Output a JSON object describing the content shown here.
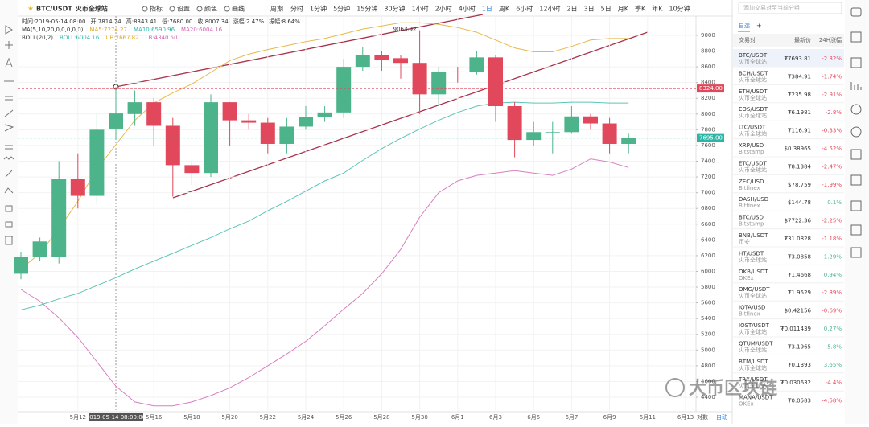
{
  "toolbar": {
    "symbol": "BTC/USDT",
    "exchange": "火币全球站",
    "buttons": [
      "指标",
      "设置",
      "颜色",
      "画线"
    ],
    "period_label": "周期",
    "periods": [
      "分时",
      "1分钟",
      "5分钟",
      "15分钟",
      "30分钟",
      "1小时",
      "2小时",
      "4小时",
      "1日",
      "周K",
      "6小时",
      "12小时",
      "2日",
      "3日",
      "5日",
      "月K",
      "季K",
      "年K",
      "10分钟"
    ],
    "active_period_index": 8
  },
  "info": {
    "ohlc": [
      "时间:2019-05-14 08:00",
      "开:7814.24",
      "高:8343.41",
      "低:7680.00",
      "收:8007.34",
      "涨幅:2.47%",
      "振幅:8.64%"
    ],
    "ma": [
      {
        "text": "MA(5,10,20,0,0,0,0,0)",
        "color": "#333333"
      },
      {
        "text": "MA5:7274.27",
        "color": "#e0a81e"
      },
      {
        "text": "MA10:6590.96",
        "color": "#2bb5a5"
      },
      {
        "text": "MA20:6004.16",
        "color": "#d65fb0"
      }
    ],
    "boll": [
      {
        "text": "BOLL(20,2)",
        "color": "#333333"
      },
      {
        "text": "BOLL:6004.16",
        "color": "#2bb5a5"
      },
      {
        "text": "UB:7667.82",
        "color": "#e0a81e"
      },
      {
        "text": "LB:4340.50",
        "color": "#d65fb0"
      }
    ]
  },
  "chart": {
    "type": "candlestick",
    "categories": [
      null,
      null,
      null,
      "5月12",
      null,
      null,
      null,
      "5月16",
      null,
      "5月18",
      null,
      "5月20",
      null,
      "5月22",
      null,
      "5月24",
      null,
      "5月26",
      null,
      "5月28",
      null,
      "5月30",
      null,
      "6月1",
      null,
      "6月3",
      null,
      "6月5",
      null,
      "6月7",
      null,
      "6月9",
      null,
      "6月11",
      null,
      "6月13"
    ],
    "open": [
      5970,
      6180,
      6180,
      7180,
      6960,
      7814.24,
      8000,
      8150,
      7850,
      7350,
      7250,
      8150,
      7920,
      7890,
      7620,
      7840,
      7960,
      8020,
      8600,
      8750,
      8710,
      8650,
      8250,
      8540,
      8530,
      8720,
      8100,
      7670,
      7760,
      7770,
      7970,
      7880,
      7620,
      null,
      null,
      null
    ],
    "high": [
      6250,
      6430,
      7400,
      7500,
      8000,
      8343.41,
      8300,
      8200,
      7950,
      7400,
      8250,
      8150,
      8000,
      7950,
      7950,
      8100,
      8100,
      8700,
      8850,
      8800,
      8750,
      9063.92,
      8600,
      8600,
      8800,
      8750,
      8150,
      7900,
      7900,
      8100,
      8000,
      7950,
      7750,
      null,
      null,
      null
    ],
    "low": [
      5900,
      6130,
      6100,
      6800,
      6850,
      7680,
      7850,
      7600,
      6950,
      7100,
      7200,
      7600,
      7800,
      7500,
      7500,
      7800,
      7900,
      7950,
      8550,
      8550,
      8450,
      8000,
      8100,
      8400,
      8500,
      7900,
      7450,
      7600,
      7500,
      7750,
      7800,
      7500,
      7500,
      null,
      null,
      null
    ],
    "close": [
      6180,
      6380,
      7180,
      6960,
      7800,
      8007.34,
      8150,
      7850,
      7350,
      7250,
      8150,
      7920,
      7890,
      7620,
      7840,
      7960,
      8020,
      8600,
      8750,
      8690,
      8650,
      8250,
      8540,
      8530,
      8720,
      8100,
      7670,
      7770,
      7770,
      7970,
      7880,
      7620,
      7693.81,
      null,
      null,
      null
    ],
    "up_color": "#4cb38a",
    "down_color": "#e1485b",
    "series": [
      {
        "color": "#e8b84a",
        "values": [
          6030,
          6230,
          6540,
          6890,
          7300,
          7610,
          7920,
          8140,
          8270,
          8380,
          8530,
          8680,
          8760,
          8820,
          8870,
          8920,
          8960,
          9020,
          9080,
          9120,
          9160,
          9160,
          9140,
          9100,
          9040,
          8940,
          8840,
          8790,
          8790,
          8860,
          8940,
          8960,
          8960,
          null,
          null,
          null
        ]
      },
      {
        "color": "#5cc4b8",
        "values": [
          5510,
          5570,
          5650,
          5720,
          5820,
          5920,
          6030,
          6130,
          6230,
          6330,
          6430,
          6540,
          6640,
          6770,
          6890,
          7020,
          7150,
          7250,
          7410,
          7560,
          7690,
          7810,
          7920,
          8020,
          8100,
          8140,
          8150,
          8140,
          8140,
          8150,
          8150,
          8140,
          8140,
          null,
          null,
          null
        ]
      },
      {
        "color": "#d77fc0",
        "values": [
          5770,
          5620,
          5410,
          5160,
          4850,
          4540,
          4340,
          4290,
          4290,
          4340,
          4420,
          4520,
          4650,
          4800,
          4950,
          5110,
          5310,
          5520,
          5720,
          5970,
          6280,
          6690,
          7000,
          7150,
          7220,
          7250,
          7280,
          7250,
          7220,
          7300,
          7430,
          7390,
          7320,
          null,
          null,
          null
        ]
      }
    ],
    "ylim": [
      4216,
      9245
    ],
    "yticks": [
      9000,
      8800,
      8600,
      8400,
      8200,
      8000,
      7800,
      7600,
      7400,
      7200,
      7000,
      6800,
      6600,
      6400,
      6200,
      6000,
      5800,
      5600,
      5400,
      5200,
      5000,
      4800,
      4600,
      4400
    ],
    "price_lines": [
      {
        "value": 8324,
        "label": "8324.00",
        "color": "#e1485b"
      },
      {
        "value": 7695,
        "label": "7695.00",
        "color": "#2bb5a5"
      }
    ],
    "crosshair_label": "2019-05-14 08:00:00",
    "high_annotation_index": 21,
    "bottom_buttons": [
      "对数",
      "自动"
    ]
  },
  "watchlist": {
    "search": "添加交易对至当前分组",
    "tab": "自选",
    "add": "+",
    "columns": [
      "交易对",
      "最新价",
      "24H涨幅"
    ],
    "rows": [
      [
        "BTC/USDT",
        "火币全球站",
        "₮7693.81",
        "-2.32%"
      ],
      [
        "BCH/USDT",
        "火币全球站",
        "₮384.91",
        "-1.74%"
      ],
      [
        "ETH/USDT",
        "火币全球站",
        "₮235.98",
        "-2.91%"
      ],
      [
        "EOS/USDT",
        "火币全球站",
        "₮6.1981",
        "-2.8%"
      ],
      [
        "LTC/USDT",
        "火币全球站",
        "₮116.91",
        "-0.33%"
      ],
      [
        "XRP/USD",
        "Bitstamp",
        "$0.38965",
        "-4.52%"
      ],
      [
        "ETC/USDT",
        "火币全球站",
        "₮8.1384",
        "-2.47%"
      ],
      [
        "ZEC/USD",
        "Bitfinex",
        "$78.759",
        "-1.99%"
      ],
      [
        "DASH/USD",
        "Bitfinex",
        "$144.78",
        "0.1%"
      ],
      [
        "BTC/USD",
        "Bitstamp",
        "$7722.36",
        "-2.25%"
      ],
      [
        "BNB/USDT",
        "币安",
        "₮31.0828",
        "-1.18%"
      ],
      [
        "HT/USDT",
        "火币全球站",
        "₮3.0858",
        "1.29%"
      ],
      [
        "OKB/USDT",
        "OKEx",
        "₮1.4668",
        "0.94%"
      ],
      [
        "OMG/USDT",
        "火币全球站",
        "₮1.9529",
        "-2.39%"
      ],
      [
        "IOTA/USD",
        "Bitfinex",
        "$0.42156",
        "-0.69%"
      ],
      [
        "IOST/USDT",
        "火币全球站",
        "₮0.011439",
        "0.27%"
      ],
      [
        "QTUM/USDT",
        "火币全球站",
        "₮3.1965",
        "5.8%"
      ],
      [
        "BTM/USDT",
        "火币全球站",
        "₮0.1393",
        "3.65%"
      ],
      [
        "TRX/USDT",
        "火币全球站",
        "₮0.030632",
        "-4.4%"
      ],
      [
        "MANA/USDT",
        "OKEx",
        "₮0.0583",
        "-4.58%"
      ]
    ]
  },
  "watermark": "大币区块链"
}
